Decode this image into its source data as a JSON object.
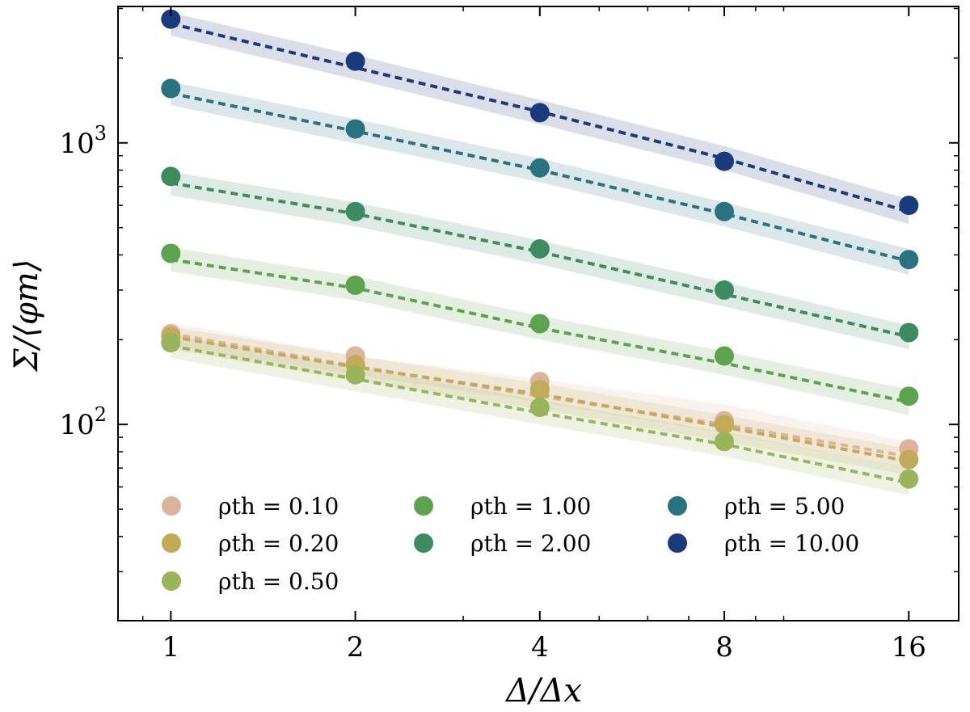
{
  "chart_data": {
    "type": "scatter",
    "xlabel": "Δ/Δx",
    "ylabel": "Σ/⟨φm⟩",
    "xscale": "log2",
    "yscale": "log",
    "x": [
      1,
      2,
      4,
      8,
      16
    ],
    "x_tick_labels": [
      "1",
      "2",
      "4",
      "8",
      "16"
    ],
    "y_tick_labels": [
      {
        "value": 100,
        "base": "10",
        "exp": "2"
      },
      {
        "value": 1000,
        "base": "10",
        "exp": "3"
      }
    ],
    "xlim": [
      0.82,
      19.3
    ],
    "ylim": [
      20.1,
      3050
    ],
    "legend_placement": "lower-left",
    "series": [
      {
        "name": "ρth = 0.10",
        "color": "#dcb49b",
        "points": [
          210,
          175,
          142,
          103,
          82
        ],
        "fit": [
          210,
          161,
          126,
          100,
          77
        ],
        "band_low": [
          190,
          150,
          120,
          93,
          70
        ],
        "band_high": [
          230,
          175,
          145,
          118,
          87
        ]
      },
      {
        "name": "ρth = 0.20",
        "color": "#c2aa5b",
        "points": [
          205,
          163,
          133,
          100,
          75
        ],
        "fit": [
          205,
          160,
          128,
          98,
          74
        ],
        "band_low": [
          185,
          143,
          113,
          87,
          66
        ],
        "band_high": [
          222,
          175,
          140,
          108,
          82
        ]
      },
      {
        "name": "ρth = 0.50",
        "color": "#9ab45b",
        "points": [
          195,
          150,
          115,
          87,
          64
        ],
        "fit": [
          190,
          145,
          110,
          85,
          62
        ],
        "band_low": [
          172,
          131,
          100,
          77,
          56
        ],
        "band_high": [
          208,
          160,
          122,
          94,
          70
        ]
      },
      {
        "name": "ρth = 1.00",
        "color": "#5ca24f",
        "points": [
          405,
          312,
          228,
          175,
          126
        ],
        "fit": [
          385,
          305,
          220,
          165,
          120
        ],
        "band_low": [
          350,
          276,
          200,
          150,
          108
        ],
        "band_high": [
          425,
          336,
          243,
          182,
          133
        ]
      },
      {
        "name": "ρth = 2.00",
        "color": "#3e8b62",
        "points": [
          760,
          570,
          420,
          300,
          212
        ],
        "fit": [
          720,
          560,
          410,
          290,
          205
        ],
        "band_low": [
          650,
          505,
          370,
          262,
          185
        ],
        "band_high": [
          790,
          615,
          450,
          320,
          225
        ]
      },
      {
        "name": "ρth = 5.00",
        "color": "#2a7280",
        "points": [
          1560,
          1120,
          815,
          570,
          385
        ],
        "fit": [
          1500,
          1100,
          800,
          560,
          380
        ],
        "band_low": [
          1360,
          995,
          725,
          505,
          340
        ],
        "band_high": [
          1650,
          1215,
          880,
          615,
          420
        ]
      },
      {
        "name": "ρth = 10.00",
        "color": "#1b3a7c",
        "points": [
          2750,
          1950,
          1280,
          860,
          600
        ],
        "fit": [
          2650,
          1850,
          1290,
          880,
          570
        ],
        "band_low": [
          2400,
          1680,
          1165,
          800,
          515
        ],
        "band_high": [
          2900,
          2050,
          1420,
          975,
          630
        ]
      }
    ]
  }
}
